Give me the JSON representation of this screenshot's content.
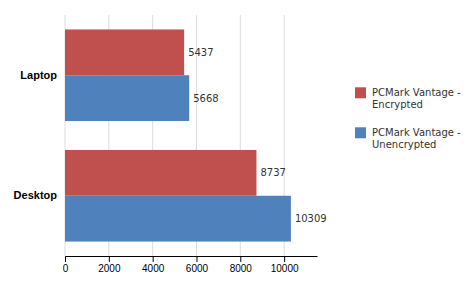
{
  "chart_data": {
    "type": "bar",
    "orientation": "horizontal",
    "categories": [
      "Desktop",
      "Laptop"
    ],
    "series": [
      {
        "name": "PCMark Vantage -\nEncrypted",
        "color": "#c0504d",
        "values": [
          8737,
          5437
        ]
      },
      {
        "name": "PCMark Vantage -\nUnencrypted",
        "color": "#4f81bd",
        "values": [
          10309,
          5668
        ]
      }
    ],
    "xlim": [
      0,
      11500
    ],
    "xticks": [
      0,
      2000,
      4000,
      6000,
      8000,
      10000
    ],
    "grid": true,
    "data_labels": true,
    "legend": "right"
  }
}
